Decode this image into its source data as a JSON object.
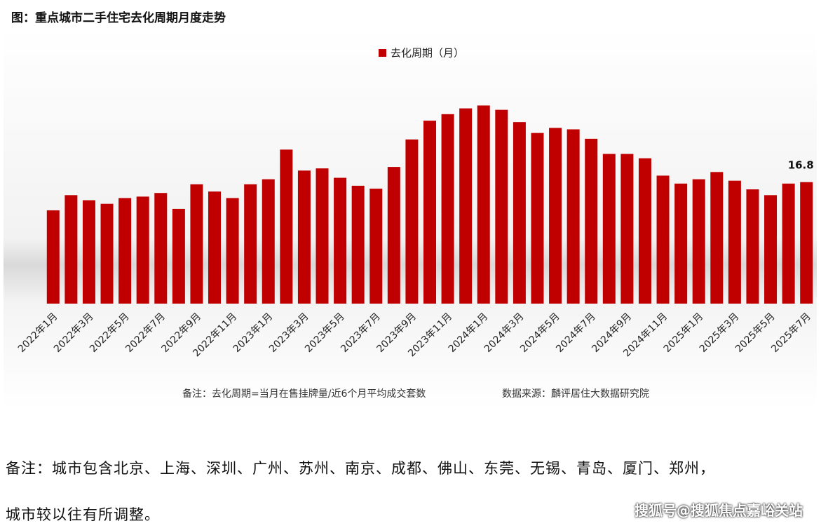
{
  "chart_data": {
    "type": "bar",
    "title": "图：重点城市二手住宅去化周期月度走势",
    "legend": "去化周期（月）",
    "color": "#c00000",
    "categories": [
      "2022年1月",
      null,
      "2022年3月",
      null,
      "2022年5月",
      null,
      "2022年7月",
      null,
      "2022年9月",
      null,
      "2022年11月",
      null,
      "2023年1月",
      null,
      "2023年3月",
      null,
      "2023年5月",
      null,
      "2023年7月",
      null,
      "2023年9月",
      null,
      "2023年11月",
      null,
      "2024年1月",
      null,
      "2024年3月",
      null,
      "2024年5月",
      null,
      "2024年7月",
      null,
      "2024年9月",
      null,
      "2024年11月",
      null,
      "2025年1月",
      null,
      "2025年3月",
      null,
      "2025年5月",
      null,
      "2025年7月"
    ],
    "values": [
      12.9,
      15.0,
      14.3,
      13.8,
      14.6,
      14.8,
      15.3,
      13.1,
      16.5,
      15.5,
      14.6,
      16.5,
      17.2,
      21.3,
      18.4,
      18.7,
      17.4,
      16.3,
      15.9,
      18.9,
      22.7,
      25.3,
      26.2,
      27.0,
      27.4,
      26.8,
      25.1,
      23.6,
      24.3,
      24.1,
      22.8,
      20.7,
      20.7,
      20.1,
      17.7,
      16.6,
      17.2,
      18.2,
      17.0,
      15.8,
      15.0,
      16.6,
      16.8
    ],
    "value_labels": [
      null,
      null,
      null,
      null,
      null,
      null,
      null,
      null,
      null,
      null,
      null,
      null,
      null,
      null,
      null,
      null,
      null,
      null,
      null,
      null,
      null,
      null,
      null,
      null,
      null,
      null,
      null,
      null,
      null,
      null,
      null,
      null,
      null,
      null,
      null,
      null,
      null,
      null,
      null,
      null,
      null,
      null,
      "16.8"
    ],
    "ylim": [
      0,
      32
    ],
    "note": "备注：去化周期=当月在售挂牌量/近6个月平均成交套数",
    "source": "数据来源：麟评居住大数据研究院"
  },
  "body": [
    "备注：城市包含北京、上海、深圳、广州、苏州、南京、成都、佛山、东莞、无锡、青岛、厦门、郑州，",
    "城市较以往有所调整。"
  ],
  "watermark": "搜狐号@搜狐焦点嘉峪关站"
}
